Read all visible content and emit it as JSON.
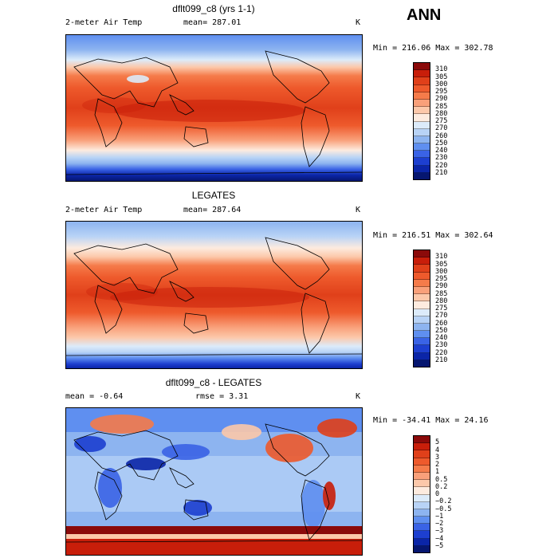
{
  "season": "ANN",
  "panels": [
    {
      "title": "dflt099_c8 (yrs 1-1)",
      "left_label": "2-meter Air Temp",
      "stat_label": "mean= 287.01",
      "units": "K",
      "minmax": "Min = 216.06 Max = 302.78",
      "levels": [
        "310",
        "305",
        "300",
        "295",
        "290",
        "285",
        "280",
        "275",
        "270",
        "260",
        "250",
        "240",
        "230",
        "220",
        "210"
      ],
      "colors": [
        "#8b0a0a",
        "#c81e0a",
        "#e0401a",
        "#ee5a2c",
        "#f57b4a",
        "#f9a07a",
        "#fcc8aa",
        "#fdebdf",
        "#dcebfa",
        "#b8d3f6",
        "#8db4f0",
        "#5f8ff0",
        "#3a63e6",
        "#1d3fd0",
        "#0b25a8",
        "#061670"
      ]
    },
    {
      "title": "LEGATES",
      "left_label": "2-meter Air Temp",
      "stat_label": "mean= 287.64",
      "units": "K",
      "minmax": "Min = 216.51 Max = 302.64",
      "levels": [
        "310",
        "305",
        "300",
        "295",
        "290",
        "285",
        "280",
        "275",
        "270",
        "260",
        "250",
        "240",
        "230",
        "220",
        "210"
      ],
      "colors": [
        "#8b0a0a",
        "#c81e0a",
        "#e0401a",
        "#ee5a2c",
        "#f57b4a",
        "#f9a07a",
        "#fcc8aa",
        "#fdebdf",
        "#dcebfa",
        "#b8d3f6",
        "#8db4f0",
        "#5f8ff0",
        "#3a63e6",
        "#1d3fd0",
        "#0b25a8",
        "#061670"
      ]
    },
    {
      "title": "dflt099_c8 - LEGATES",
      "left_label": "mean =  -0.64",
      "stat_label": "rmse =   3.31",
      "units": "K",
      "minmax": "Min = -34.41 Max =  24.16",
      "levels": [
        "5",
        "4",
        "3",
        "2",
        "1",
        "0.5",
        "0.2",
        "0",
        "−0.2",
        "−0.5",
        "−1",
        "−2",
        "−3",
        "−4",
        "−5"
      ],
      "colors": [
        "#8b0a0a",
        "#c81e0a",
        "#e0401a",
        "#ee5a2c",
        "#f57b4a",
        "#f9a07a",
        "#fcc8aa",
        "#fdebdf",
        "#dcebfa",
        "#b8d3f6",
        "#8db4f0",
        "#5f8ff0",
        "#3a63e6",
        "#1d3fd0",
        "#0b25a8",
        "#061670"
      ]
    }
  ]
}
